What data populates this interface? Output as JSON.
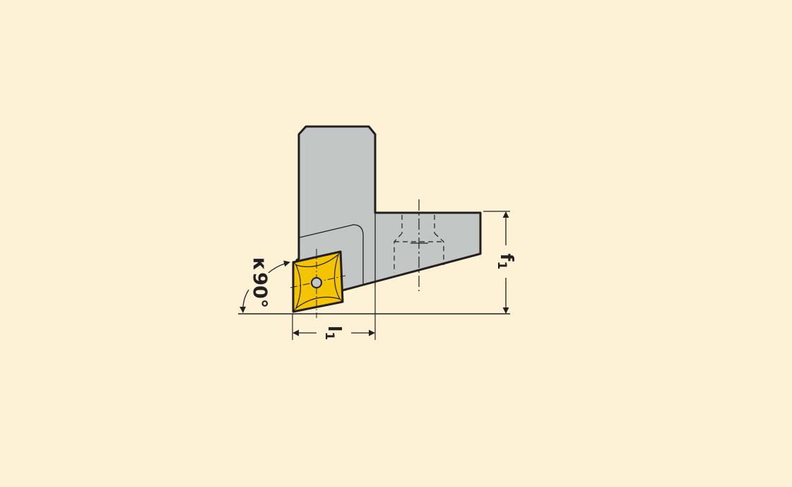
{
  "diagram": {
    "labels": {
      "angle_symbol": "κ",
      "angle_value": "90°",
      "length_symbol": "l",
      "length_subscript": "1",
      "offset_symbol": "f",
      "offset_subscript": "1"
    },
    "colors": {
      "background": "#fdf2d6",
      "tool_body": "#c2c6c5",
      "insert": "#f4c400",
      "outline": "#231f20"
    }
  }
}
